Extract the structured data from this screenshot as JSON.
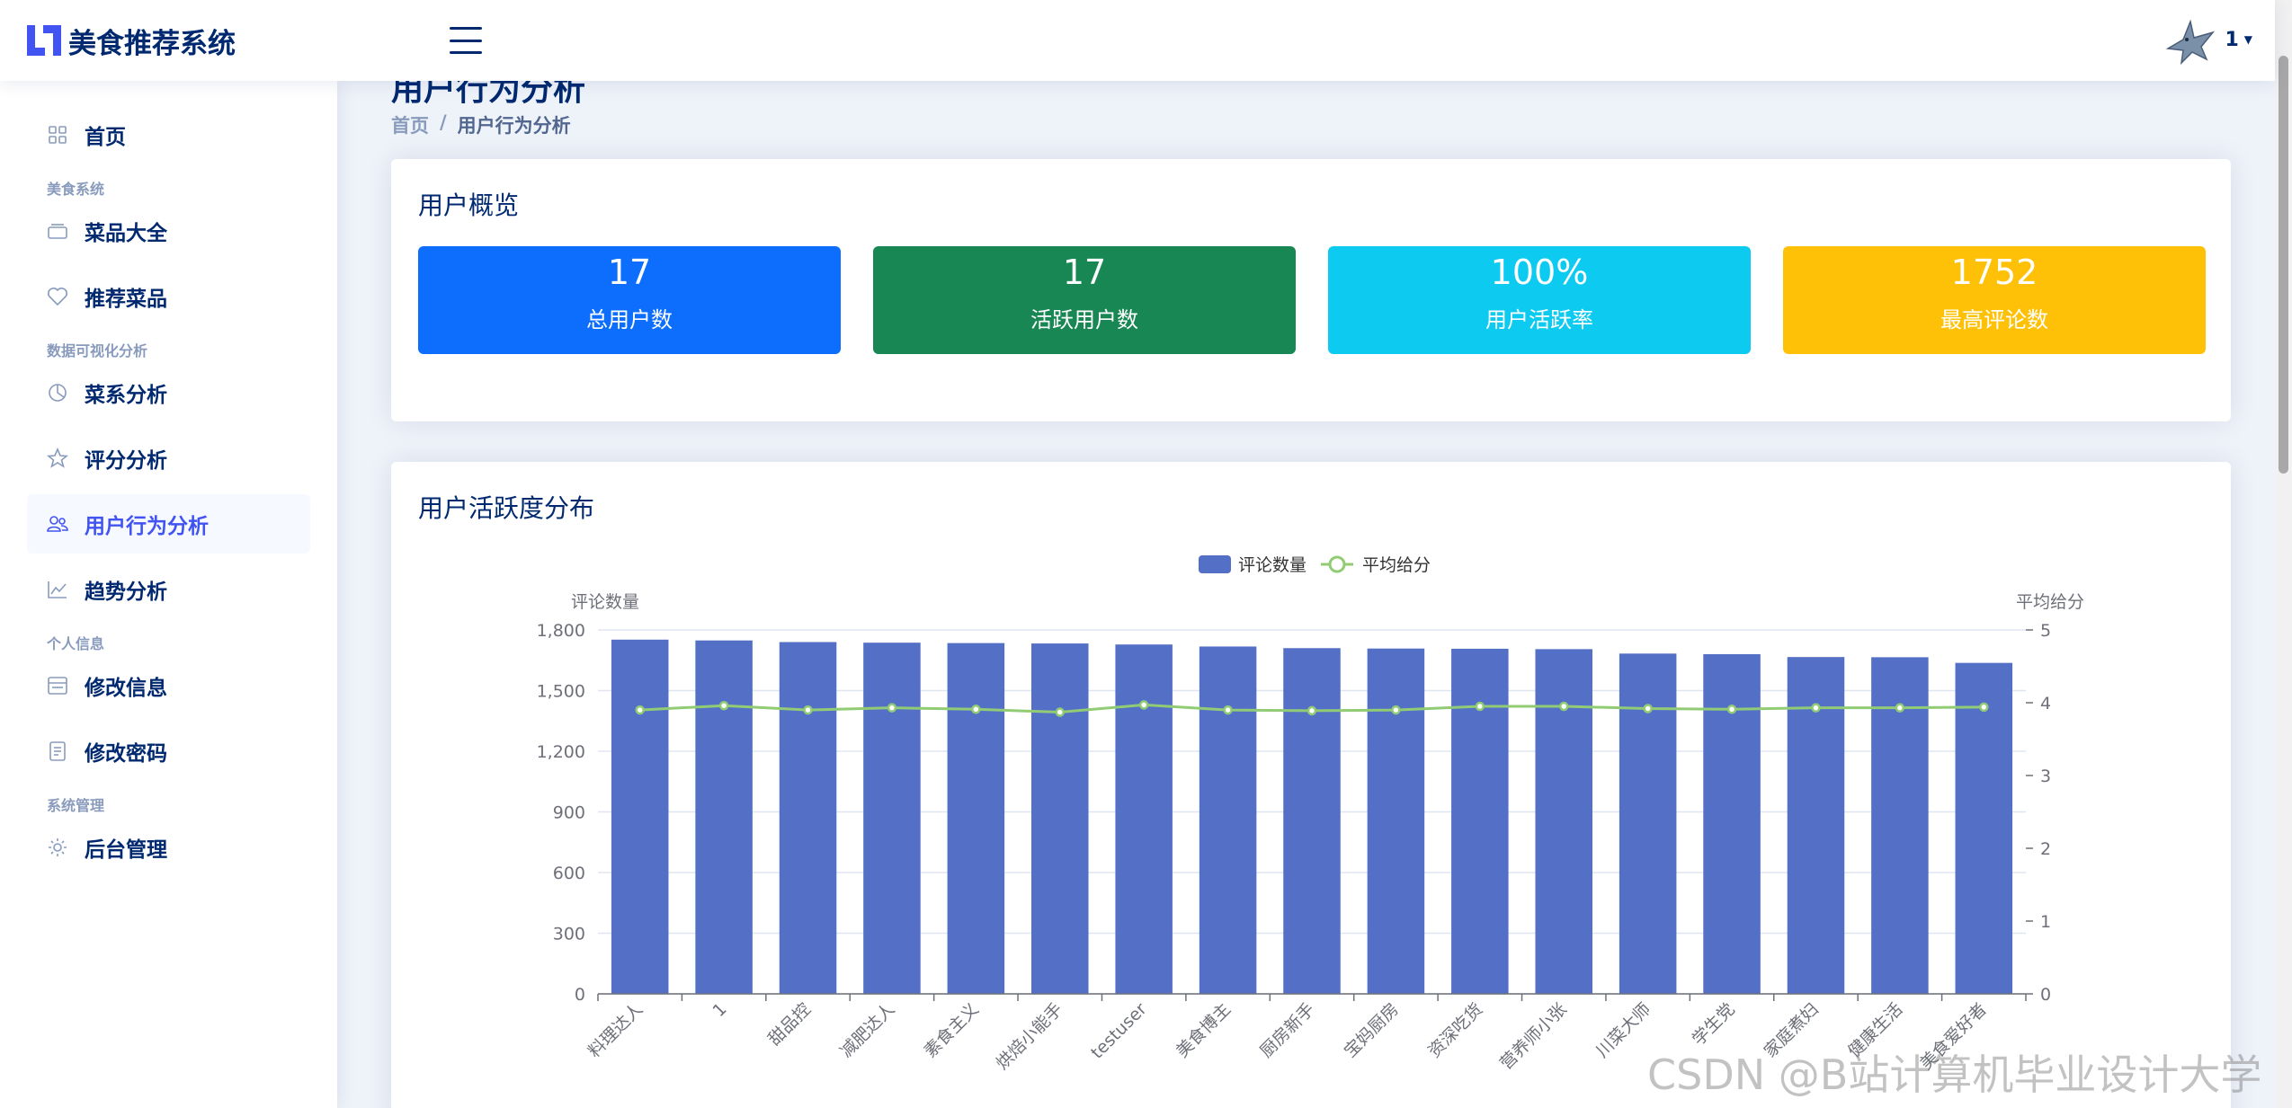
{
  "app": {
    "title": "美食推荐系统"
  },
  "header": {
    "username": "1"
  },
  "sidebar": {
    "items": [
      {
        "type": "item",
        "label": "首页",
        "icon": "grid-icon"
      },
      {
        "type": "heading",
        "label": "美食系统"
      },
      {
        "type": "item",
        "label": "菜品大全",
        "icon": "layers-icon"
      },
      {
        "type": "item",
        "label": "推荐菜品",
        "icon": "heart-icon"
      },
      {
        "type": "heading",
        "label": "数据可视化分析"
      },
      {
        "type": "item",
        "label": "菜系分析",
        "icon": "pie-chart-icon"
      },
      {
        "type": "item",
        "label": "评分分析",
        "icon": "star-icon"
      },
      {
        "type": "item",
        "label": "用户行为分析",
        "icon": "people-icon",
        "active": true
      },
      {
        "type": "item",
        "label": "趋势分析",
        "icon": "line-chart-icon"
      },
      {
        "type": "heading",
        "label": "个人信息"
      },
      {
        "type": "item",
        "label": "修改信息",
        "icon": "card-list-icon"
      },
      {
        "type": "item",
        "label": "修改密码",
        "icon": "document-icon"
      },
      {
        "type": "heading",
        "label": "系统管理"
      },
      {
        "type": "item",
        "label": "后台管理",
        "icon": "gear-icon"
      }
    ]
  },
  "page": {
    "title": "用户行为分析",
    "breadcrumb": {
      "home": "首页",
      "separator": "/",
      "current": "用户行为分析"
    }
  },
  "overview": {
    "title": "用户概览",
    "stats": [
      {
        "value": "17",
        "label": "总用户数",
        "color": "#0d6efd"
      },
      {
        "value": "17",
        "label": "活跃用户数",
        "color": "#198754"
      },
      {
        "value": "100%",
        "label": "用户活跃率",
        "color": "#0dcaf0"
      },
      {
        "value": "1752",
        "label": "最高评论数",
        "color": "#ffc107"
      }
    ]
  },
  "activity": {
    "title": "用户活跃度分布"
  },
  "chart_data": {
    "type": "bar",
    "categories": [
      "料理达人",
      "1",
      "甜品控",
      "减肥达人",
      "素食主义",
      "烘焙小能手",
      "testuser",
      "美食博主",
      "厨房新手",
      "宝妈厨房",
      "资深吃货",
      "营养师小张",
      "川菜大师",
      "学生党",
      "家庭煮妇",
      "健康生活",
      "美食爱好者"
    ],
    "series": [
      {
        "name": "评论数量",
        "type": "bar",
        "axis": "left",
        "color": "#5470c6",
        "values": [
          1752,
          1748,
          1740,
          1737,
          1735,
          1733,
          1728,
          1718,
          1710,
          1708,
          1707,
          1705,
          1683,
          1680,
          1666,
          1665,
          1637
        ]
      },
      {
        "name": "平均给分",
        "type": "line",
        "axis": "right",
        "color": "#91cc75",
        "values": [
          3.9,
          3.96,
          3.9,
          3.93,
          3.91,
          3.87,
          3.97,
          3.9,
          3.89,
          3.9,
          3.95,
          3.95,
          3.92,
          3.91,
          3.93,
          3.93,
          3.94
        ]
      }
    ],
    "ylabel": "评论数量",
    "ylabel_right": "平均给分",
    "ylim": [
      0,
      1800
    ],
    "yticks": [
      0,
      300,
      600,
      900,
      1200,
      1500,
      1800
    ],
    "ytick_labels": [
      "0",
      "300",
      "600",
      "900",
      "1,200",
      "1,500",
      "1,800"
    ],
    "ylim_right": [
      0,
      5
    ],
    "yticks_right": [
      0,
      1,
      2,
      3,
      4,
      5
    ],
    "legend_position": "top-center",
    "grid": true
  },
  "watermark": "CSDN @B站计算机毕业设计大学"
}
